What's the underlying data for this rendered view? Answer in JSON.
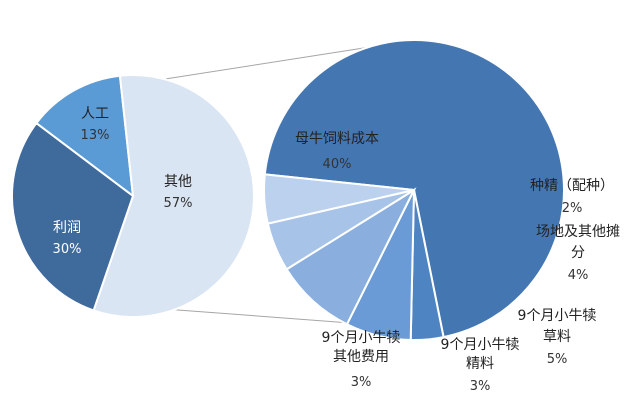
{
  "chart_data": [
    {
      "type": "pie",
      "categories": [
        "人工",
        "其他",
        "利润"
      ],
      "values": [
        13,
        57,
        30
      ],
      "value_labels": [
        "13%",
        "57%",
        "30%"
      ],
      "colors": [
        "#5b9bd5",
        "#dae5f3",
        "#3f6a9c"
      ],
      "title": ""
    },
    {
      "type": "pie",
      "categories": [
        "母牛饲料成本",
        "种精（配种）",
        "场地及其他摊分",
        "9个月小牛犊草料",
        "9个月小牛犊精料",
        "9个月小牛犊其他费用"
      ],
      "label_lines": [
        [
          "母牛饲料成本"
        ],
        [
          "种精（配种）"
        ],
        [
          "场地及其他摊",
          "分"
        ],
        [
          "9个月小牛犊",
          "草料"
        ],
        [
          "9个月小牛犊",
          "精料"
        ],
        [
          "9个月小牛犊",
          "其他费用"
        ]
      ],
      "values": [
        40,
        2,
        4,
        5,
        3,
        3
      ],
      "value_labels": [
        "40%",
        "2%",
        "4%",
        "5%",
        "3%",
        "3%"
      ],
      "colors": [
        "#4477b2",
        "#4f84c3",
        "#6a9bd6",
        "#8aafdf",
        "#a7c3e8",
        "#bcd1ee"
      ],
      "breakdown_of": "其他",
      "title": ""
    }
  ]
}
